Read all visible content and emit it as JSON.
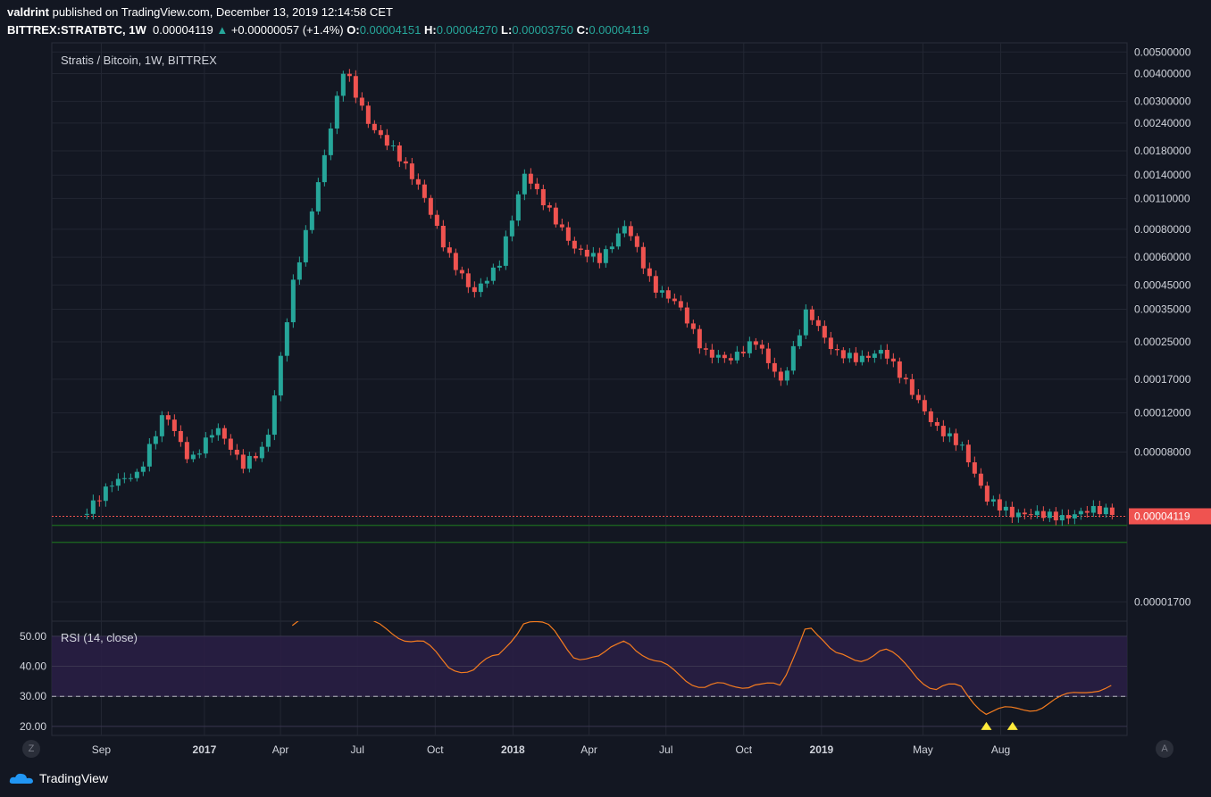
{
  "header": {
    "user": "valdrint",
    "published": "published on TradingView.com, December 13, 2019 12:14:58 CET"
  },
  "ohlc": {
    "symbol": "BITTREX:STRATBTC, 1W",
    "last": "0.00004119",
    "change": "+0.00000057 (+1.4%)",
    "o_label": "O:",
    "o": "0.00004151",
    "h_label": "H:",
    "h": "0.00004270",
    "l_label": "L:",
    "l": "0.00003750",
    "c_label": "C:",
    "c": "0.00004119"
  },
  "chart_title": "Stratis / Bitcoin, 1W, BITTREX",
  "rsi_label": "RSI (14, close)",
  "logo_text": "TradingView",
  "corner_left": "Z",
  "corner_right": "A",
  "colors": {
    "up": "#26a69a",
    "down": "#ef5350",
    "rsi": "#f57c1f",
    "rsi_band": "#2a1f45",
    "support": "#1b5e20",
    "signal": "#ffeb3b",
    "price_tag": "#ef5350"
  },
  "chart_data": [
    {
      "type": "candlestick",
      "title": "Stratis / Bitcoin, 1W, BITTREX",
      "y_scale": "log",
      "ylim": [
        1.5e-05,
        0.0052
      ],
      "y_ticks": [
        "0.00500000",
        "0.00400000",
        "0.00300000",
        "0.00240000",
        "0.00180000",
        "0.00140000",
        "0.00110000",
        "0.00080000",
        "0.00060000",
        "0.00045000",
        "0.00035000",
        "0.00025000",
        "0.00017000",
        "0.00012000",
        "0.00008000",
        "0.00001700"
      ],
      "x_ticks": [
        "Sep",
        "2017",
        "Apr",
        "Jul",
        "Oct",
        "2018",
        "Apr",
        "Jul",
        "Oct",
        "2019",
        "May",
        "Aug"
      ],
      "last_price": "0.00004119",
      "anchors": [
        {
          "t": "2016-08",
          "close": 4.2e-05
        },
        {
          "t": "2016-09",
          "close": 5.6e-05
        },
        {
          "t": "2016-10",
          "close": 6e-05
        },
        {
          "t": "2016-11",
          "close": 0.000115
        },
        {
          "t": "2016-12",
          "close": 6.8e-05
        },
        {
          "t": "2017-01",
          "close": 0.0001
        },
        {
          "t": "2017-02",
          "close": 6.8e-05
        },
        {
          "t": "2017-03",
          "close": 8.5e-05
        },
        {
          "t": "2017-04",
          "close": 0.00045
        },
        {
          "t": "2017-05",
          "close": 0.0013
        },
        {
          "t": "2017-06",
          "close": 0.0045
        },
        {
          "t": "2017-07",
          "close": 0.0025
        },
        {
          "t": "2017-08",
          "close": 0.0019
        },
        {
          "t": "2017-09",
          "close": 0.00125
        },
        {
          "t": "2017-10",
          "close": 0.00065
        },
        {
          "t": "2017-11",
          "close": 0.00042
        },
        {
          "t": "2017-12",
          "close": 0.00055
        },
        {
          "t": "2018-01",
          "close": 0.0014
        },
        {
          "t": "2018-02",
          "close": 0.0009
        },
        {
          "t": "2018-03",
          "close": 0.00062
        },
        {
          "t": "2018-04",
          "close": 0.00055
        },
        {
          "t": "2018-05",
          "close": 0.0008
        },
        {
          "t": "2018-06",
          "close": 0.00042
        },
        {
          "t": "2018-07",
          "close": 0.00036
        },
        {
          "t": "2018-08",
          "close": 0.00022
        },
        {
          "t": "2018-09",
          "close": 0.00021
        },
        {
          "t": "2018-10",
          "close": 0.00026
        },
        {
          "t": "2018-11",
          "close": 0.00017
        },
        {
          "t": "2018-12",
          "close": 0.00037
        },
        {
          "t": "2019-01",
          "close": 0.00024
        },
        {
          "t": "2019-02",
          "close": 0.00022
        },
        {
          "t": "2019-03",
          "close": 0.00024
        },
        {
          "t": "2019-04",
          "close": 0.00016
        },
        {
          "t": "2019-05",
          "close": 0.000105
        },
        {
          "t": "2019-06",
          "close": 8.5e-05
        },
        {
          "t": "2019-07",
          "close": 4.8e-05
        },
        {
          "t": "2019-08",
          "close": 4e-05
        },
        {
          "t": "2019-09",
          "close": 4e-05
        },
        {
          "t": "2019-10",
          "close": 3.8e-05
        },
        {
          "t": "2019-11",
          "close": 4.2e-05
        },
        {
          "t": "2019-12",
          "close": 4.1e-05
        }
      ]
    },
    {
      "type": "line",
      "title": "RSI (14, close)",
      "ylim": [
        17,
        55
      ],
      "y_ticks": [
        "50.00",
        "40.00",
        "30.00",
        "20.00"
      ],
      "band": [
        30,
        50
      ],
      "signal_level": 30,
      "anchors": [
        {
          "t": "2017-04",
          "rsi": 55
        },
        {
          "t": "2017-06",
          "rsi": 62
        },
        {
          "t": "2017-07",
          "rsi": 54
        },
        {
          "t": "2017-09",
          "rsi": 48
        },
        {
          "t": "2017-10",
          "rsi": 40
        },
        {
          "t": "2017-11",
          "rsi": 39
        },
        {
          "t": "2017-12",
          "rsi": 43
        },
        {
          "t": "2018-01",
          "rsi": 56
        },
        {
          "t": "2018-02",
          "rsi": 52
        },
        {
          "t": "2018-03",
          "rsi": 44
        },
        {
          "t": "2018-04",
          "rsi": 42
        },
        {
          "t": "2018-05",
          "rsi": 50
        },
        {
          "t": "2018-06",
          "rsi": 41
        },
        {
          "t": "2018-07",
          "rsi": 38
        },
        {
          "t": "2018-08",
          "rsi": 33
        },
        {
          "t": "2018-09",
          "rsi": 33
        },
        {
          "t": "2018-10",
          "rsi": 35
        },
        {
          "t": "2018-11",
          "rsi": 32
        },
        {
          "t": "2018-12",
          "rsi": 56
        },
        {
          "t": "2019-01",
          "rsi": 43
        },
        {
          "t": "2019-02",
          "rsi": 43
        },
        {
          "t": "2019-03",
          "rsi": 45
        },
        {
          "t": "2019-04",
          "rsi": 40
        },
        {
          "t": "2019-05",
          "rsi": 32
        },
        {
          "t": "2019-06",
          "rsi": 33
        },
        {
          "t": "2019-07",
          "rsi": 25
        },
        {
          "t": "2019-08",
          "rsi": 25
        },
        {
          "t": "2019-09",
          "rsi": 27
        },
        {
          "t": "2019-10",
          "rsi": 29
        },
        {
          "t": "2019-11",
          "rsi": 33
        },
        {
          "t": "2019-12",
          "rsi": 33
        }
      ],
      "markers": [
        {
          "t": "2019-07",
          "value": 20
        },
        {
          "t": "2019-08",
          "value": 20
        }
      ]
    }
  ]
}
